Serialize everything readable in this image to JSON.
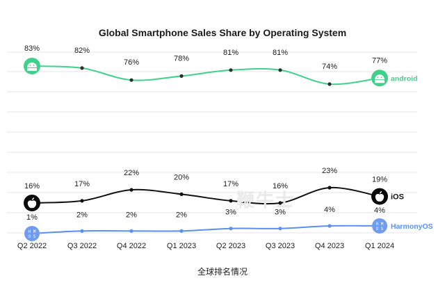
{
  "chart_data": {
    "type": "line",
    "title": "Global Smartphone Sales Share by Operating System",
    "categories": [
      "Q2 2022",
      "Q3 2022",
      "Q4 2022",
      "Q1 2023",
      "Q2 2023",
      "Q3 2023",
      "Q4 2023",
      "Q1 2024"
    ],
    "ylim": [
      0,
      100
    ],
    "grid": true,
    "series": [
      {
        "name": "android",
        "values": [
          83,
          82,
          76,
          78,
          81,
          81,
          74,
          77
        ],
        "labels": [
          "83%",
          "82%",
          "76%",
          "78%",
          "81%",
          "81%",
          "74%",
          "77%"
        ],
        "color": "#3fd18a",
        "marker_color": "#2e2e2e",
        "icon": "android-icon"
      },
      {
        "name": "iOS",
        "values": [
          16,
          17,
          22,
          20,
          17,
          16,
          23,
          19
        ],
        "labels": [
          "16%",
          "17%",
          "22%",
          "20%",
          "17%",
          "16%",
          "23%",
          "19%"
        ],
        "color": "#111111",
        "marker_color": "#111111",
        "icon": "apple-icon"
      },
      {
        "name": "HarmonyOS",
        "values": [
          1,
          2,
          2,
          2,
          3,
          3,
          4,
          4
        ],
        "labels": [
          "1%",
          "2%",
          "2%",
          "2%",
          "3%",
          "3%",
          "4%",
          "4%"
        ],
        "color": "#5b8ff0",
        "marker_color": "#5b8ff0",
        "icon": "hmos-icon"
      }
    ]
  },
  "caption": "全球排名情况",
  "watermark": "鞭牛士"
}
